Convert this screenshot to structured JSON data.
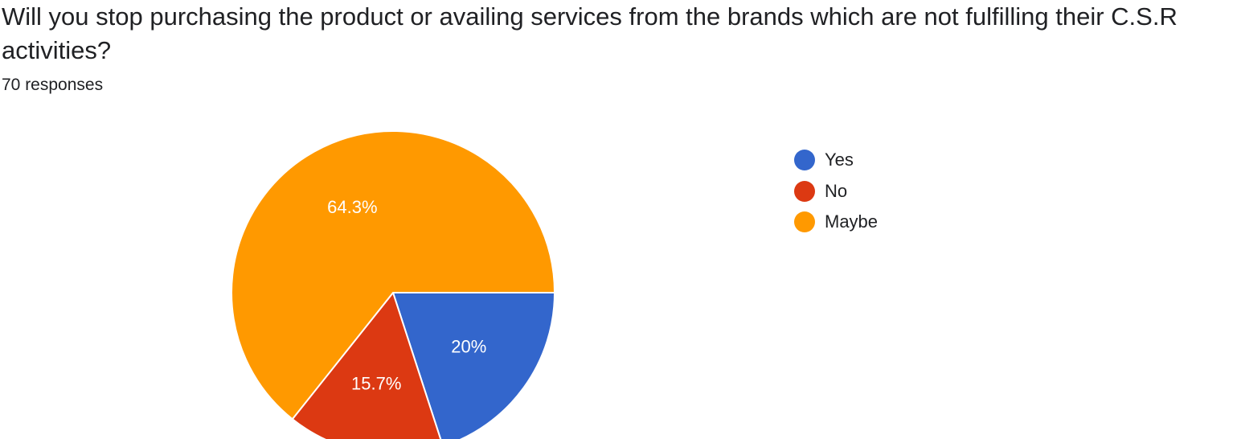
{
  "question": {
    "title": "Will you stop purchasing the product or availing services from the brands which are not fulfilling their C.S.R activities?",
    "responses_label": "70 responses"
  },
  "chart_data": {
    "type": "pie",
    "title": "Will you stop purchasing the product or availing services from the brands which are not fulfilling their C.S.R activities?",
    "categories": [
      "Yes",
      "No",
      "Maybe"
    ],
    "values": [
      20,
      15.7,
      64.3
    ],
    "labels": [
      "20%",
      "15.7%",
      "64.3%"
    ],
    "colors": [
      "#3366cc",
      "#dc3912",
      "#ff9900"
    ],
    "start_angle_deg": 90,
    "direction": "clockwise",
    "legend_position": "right"
  }
}
